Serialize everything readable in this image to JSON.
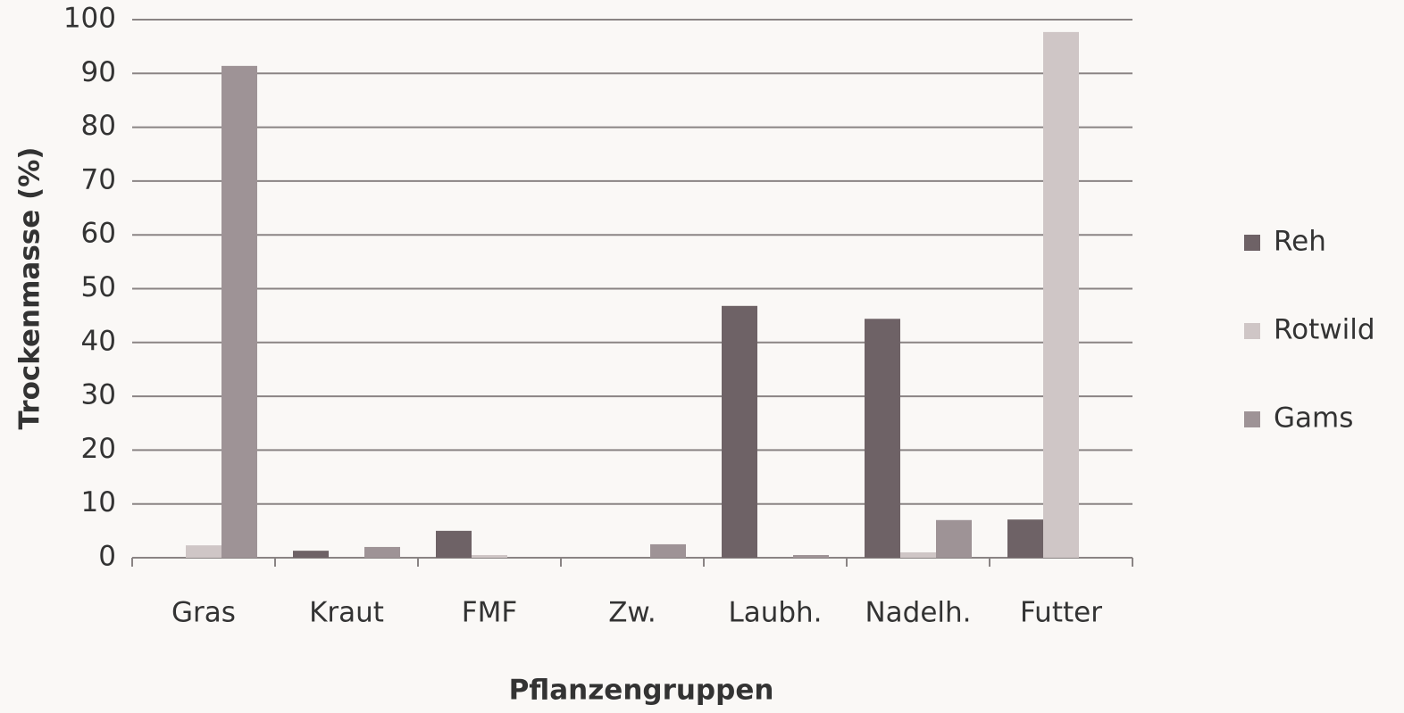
{
  "chart_data": {
    "type": "bar",
    "x_label": "Pflanzengruppen",
    "y_label": "Trockenmasse (%)",
    "categories": [
      "Gras",
      "Kraut",
      "FMF",
      "Zw.",
      "Laubh.",
      "Nadelh.",
      "Futter"
    ],
    "series": [
      {
        "name": "Reh",
        "color": "#6e6266",
        "values": [
          0,
          1.3,
          5,
          0,
          46.8,
          44.4,
          7.1
        ]
      },
      {
        "name": "Rotwild",
        "color": "#cfc6c6",
        "values": [
          2.3,
          0,
          0.5,
          0,
          0,
          1,
          97.7
        ]
      },
      {
        "name": "Gams",
        "color": "#9e9396",
        "values": [
          91.4,
          2,
          0,
          2.5,
          0.5,
          7,
          0
        ]
      }
    ],
    "ylim": [
      0,
      100
    ],
    "yticks": [
      0,
      10,
      20,
      30,
      40,
      50,
      60,
      70,
      80,
      90,
      100
    ],
    "grid": true,
    "legend": "right"
  }
}
